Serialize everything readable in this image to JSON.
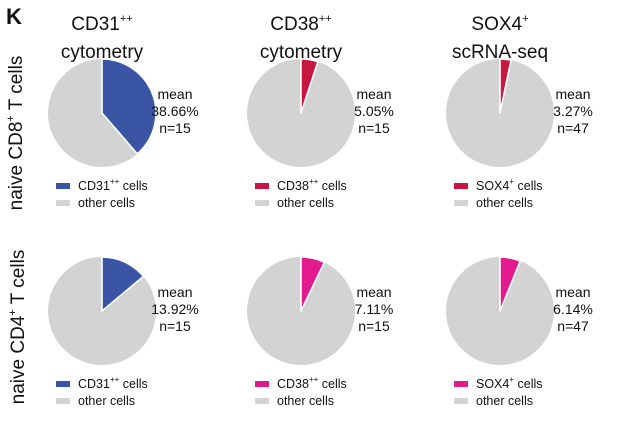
{
  "panel_label": "K",
  "colors": {
    "other": "#d3d3d3",
    "cd31": "#3a55a4",
    "cd38_cd8": "#c8173f",
    "sox4_cd8": "#c8173f",
    "cd38_cd4": "#e3198e",
    "sox4_cd4": "#e3198e"
  },
  "columns": [
    {
      "title_line1": "CD31",
      "title_sup": "++",
      "title_line2": "cytometry"
    },
    {
      "title_line1": "CD38",
      "title_sup": "++",
      "title_line2": "cytometry"
    },
    {
      "title_line1": "SOX4",
      "title_sup": "+",
      "title_line2": "scRNA-seq"
    }
  ],
  "rows": [
    {
      "label_pre": "naive CD8",
      "label_sup": "+",
      "label_post": " T cells"
    },
    {
      "label_pre": "naive CD4",
      "label_sup": "+",
      "label_post": " T cells"
    }
  ],
  "chart_data": [
    {
      "type": "pie",
      "row": "naive CD8+ T cells",
      "title": "CD31++ cytometry",
      "slices": [
        {
          "label": "CD31++ cells",
          "value": 38.66
        },
        {
          "label": "other cells",
          "value": 61.34
        }
      ],
      "stat_label": "mean",
      "mean_text": "38.66%",
      "n_text": "n=15",
      "legend": [
        {
          "name": "CD31",
          "sup": "++",
          "suffix": " cells",
          "color_key": "cd31"
        },
        {
          "name": "other cells",
          "sup": "",
          "suffix": "",
          "color_key": "other"
        }
      ],
      "color_key": "cd31"
    },
    {
      "type": "pie",
      "row": "naive CD8+ T cells",
      "title": "CD38++ cytometry",
      "slices": [
        {
          "label": "CD38++ cells",
          "value": 5.05
        },
        {
          "label": "other cells",
          "value": 94.95
        }
      ],
      "stat_label": "mean",
      "mean_text": "5.05%",
      "n_text": "n=15",
      "legend": [
        {
          "name": "CD38",
          "sup": "++",
          "suffix": " cells",
          "color_key": "cd38_cd8"
        },
        {
          "name": "other cells",
          "sup": "",
          "suffix": "",
          "color_key": "other"
        }
      ],
      "color_key": "cd38_cd8"
    },
    {
      "type": "pie",
      "row": "naive CD8+ T cells",
      "title": "SOX4+ scRNA-seq",
      "slices": [
        {
          "label": "SOX4+ cells",
          "value": 3.27
        },
        {
          "label": "other cells",
          "value": 96.73
        }
      ],
      "stat_label": "mean",
      "mean_text": "3.27%",
      "n_text": "n=47",
      "legend": [
        {
          "name": "SOX4",
          "sup": "+",
          "suffix": " cells",
          "color_key": "sox4_cd8"
        },
        {
          "name": "other cells",
          "sup": "",
          "suffix": "",
          "color_key": "other"
        }
      ],
      "color_key": "sox4_cd8"
    },
    {
      "type": "pie",
      "row": "naive CD4+ T cells",
      "title": "CD31++ cytometry",
      "slices": [
        {
          "label": "CD31++ cells",
          "value": 13.92
        },
        {
          "label": "other cells",
          "value": 86.08
        }
      ],
      "stat_label": "mean",
      "mean_text": "13.92%",
      "n_text": "n=15",
      "legend": [
        {
          "name": "CD31",
          "sup": "++",
          "suffix": " cells",
          "color_key": "cd31"
        },
        {
          "name": "other cells",
          "sup": "",
          "suffix": "",
          "color_key": "other"
        }
      ],
      "color_key": "cd31"
    },
    {
      "type": "pie",
      "row": "naive CD4+ T cells",
      "title": "CD38++ cytometry",
      "slices": [
        {
          "label": "CD38++ cells",
          "value": 7.11
        },
        {
          "label": "other cells",
          "value": 92.89
        }
      ],
      "stat_label": "mean",
      "mean_text": "7.11%",
      "n_text": "n=15",
      "legend": [
        {
          "name": "CD38",
          "sup": "++",
          "suffix": " cells",
          "color_key": "cd38_cd4"
        },
        {
          "name": "other cells",
          "sup": "",
          "suffix": "",
          "color_key": "other"
        }
      ],
      "color_key": "cd38_cd4"
    },
    {
      "type": "pie",
      "row": "naive CD4+ T cells",
      "title": "SOX4+ scRNA-seq",
      "slices": [
        {
          "label": "SOX4+ cells",
          "value": 6.14
        },
        {
          "label": "other cells",
          "value": 93.86
        }
      ],
      "stat_label": "mean",
      "mean_text": "6.14%",
      "n_text": "n=47",
      "legend": [
        {
          "name": "SOX4",
          "sup": "+",
          "suffix": " cells",
          "color_key": "sox4_cd4"
        },
        {
          "name": "other cells",
          "sup": "",
          "suffix": "",
          "color_key": "other"
        }
      ],
      "color_key": "sox4_cd4"
    }
  ]
}
